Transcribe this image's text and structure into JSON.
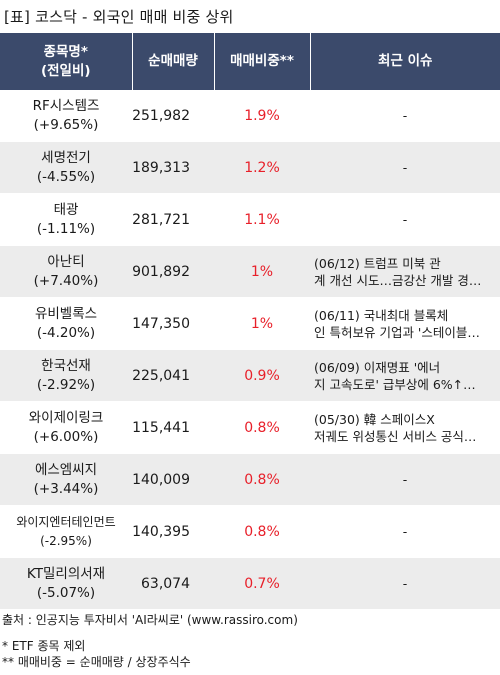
{
  "title": "[표] 코스닥 - 외국인 매매 비중 상위",
  "headers": {
    "name_line1": "종목명*",
    "name_line2": "(전일비)",
    "volume": "순매매량",
    "ratio": "매매비중**",
    "issue": "최근 이슈"
  },
  "rows": [
    {
      "name": "RF시스템즈",
      "change": "(+9.65%)",
      "volume": "251,982",
      "ratio": "1.9%",
      "issue1": "-",
      "issue2": ""
    },
    {
      "name": "세명전기",
      "change": "(-4.55%)",
      "volume": "189,313",
      "ratio": "1.2%",
      "issue1": "-",
      "issue2": ""
    },
    {
      "name": "태광",
      "change": "(-1.11%)",
      "volume": "281,721",
      "ratio": "1.1%",
      "issue1": "-",
      "issue2": ""
    },
    {
      "name": "아난티",
      "change": "(+7.40%)",
      "volume": "901,892",
      "ratio": "1%",
      "issue1": "(06/12) 트럼프 미북 관",
      "issue2": "계 개선 시도…금강산 개발 경…"
    },
    {
      "name": "유비벨록스",
      "change": "(-4.20%)",
      "volume": "147,350",
      "ratio": "1%",
      "issue1": "(06/11) 국내최대 블록체",
      "issue2": "인 특허보유 기업과 '스테이블…"
    },
    {
      "name": "한국선재",
      "change": "(-2.92%)",
      "volume": "225,041",
      "ratio": "0.9%",
      "issue1": "(06/09) 이재명표 '에너",
      "issue2": "지 고속도로' 급부상에 6%↑…"
    },
    {
      "name": "와이제이링크",
      "change": "(+6.00%)",
      "volume": "115,441",
      "ratio": "0.8%",
      "issue1": "(05/30) 韓 스페이스X",
      "issue2": "저궤도 위성통신 서비스 공식…"
    },
    {
      "name": "에스엠씨지",
      "change": "(+3.44%)",
      "volume": "140,009",
      "ratio": "0.8%",
      "issue1": "-",
      "issue2": ""
    },
    {
      "name": "와이지엔터테인먼트",
      "change": "(-2.95%)",
      "volume": "140,395",
      "ratio": "0.8%",
      "issue1": "-",
      "issue2": ""
    },
    {
      "name": "KT밀리의서재",
      "change": "(-5.07%)",
      "volume": "63,074",
      "ratio": "0.7%",
      "issue1": "-",
      "issue2": ""
    }
  ],
  "footer": {
    "source": "출처 : 인공지능 투자비서 'AI라씨로' (www.rassiro.com)",
    "note1": "* ETF 종목 제외",
    "note2": "** 매매비중 = 순매매량 / 상장주식수"
  }
}
